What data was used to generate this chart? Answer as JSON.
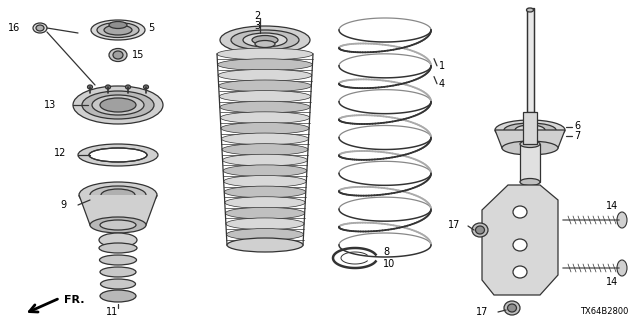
{
  "background_color": "#ffffff",
  "line_color": "#333333",
  "fig_width": 6.4,
  "fig_height": 3.2,
  "dpi": 100,
  "diagram_code": "TX64B2800",
  "lw": 0.9
}
